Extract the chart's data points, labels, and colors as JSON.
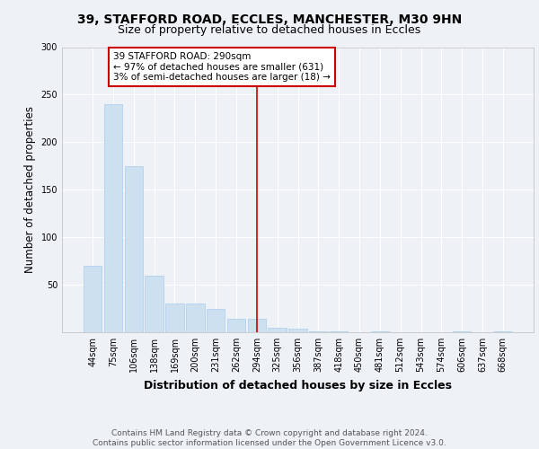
{
  "title_line1": "39, STAFFORD ROAD, ECCLES, MANCHESTER, M30 9HN",
  "title_line2": "Size of property relative to detached houses in Eccles",
  "xlabel": "Distribution of detached houses by size in Eccles",
  "ylabel": "Number of detached properties",
  "categories": [
    "44sqm",
    "75sqm",
    "106sqm",
    "138sqm",
    "169sqm",
    "200sqm",
    "231sqm",
    "262sqm",
    "294sqm",
    "325sqm",
    "356sqm",
    "387sqm",
    "418sqm",
    "450sqm",
    "481sqm",
    "512sqm",
    "543sqm",
    "574sqm",
    "606sqm",
    "637sqm",
    "668sqm"
  ],
  "values": [
    70,
    240,
    175,
    60,
    30,
    30,
    25,
    14,
    14,
    5,
    4,
    1,
    1,
    0,
    1,
    0,
    0,
    0,
    1,
    0,
    1
  ],
  "bar_color": "#cce0f0",
  "bar_edge_color": "#aaccee",
  "reference_line_x": 8.0,
  "reference_line_color": "#cc0000",
  "annotation_text": "39 STAFFORD ROAD: 290sqm\n← 97% of detached houses are smaller (631)\n3% of semi-detached houses are larger (18) →",
  "annotation_box_color": "#ffffff",
  "annotation_box_edge_color": "#cc0000",
  "ylim": [
    0,
    300
  ],
  "yticks": [
    0,
    50,
    100,
    150,
    200,
    250,
    300
  ],
  "background_color": "#eef2f7",
  "plot_bg_color": "#eef2f7",
  "footer_text": "Contains HM Land Registry data © Crown copyright and database right 2024.\nContains public sector information licensed under the Open Government Licence v3.0.",
  "title_fontsize": 10,
  "subtitle_fontsize": 9,
  "axis_label_fontsize": 8.5,
  "tick_fontsize": 7,
  "footer_fontsize": 6.5,
  "annotation_fontsize": 7.5
}
